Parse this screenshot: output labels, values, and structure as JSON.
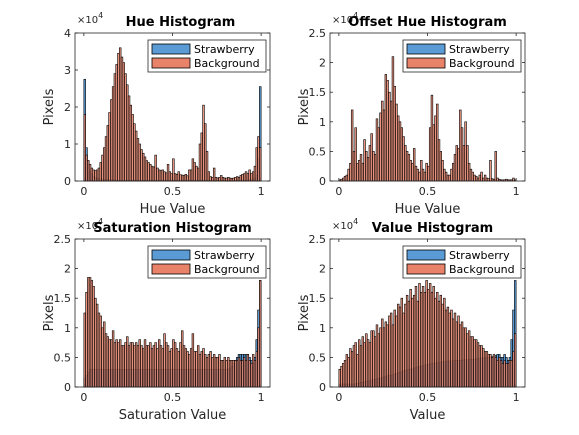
{
  "colors": {
    "strawberry": "#5b9bd5",
    "background": "#e8836a",
    "edge": "#000000",
    "axis": "#262626",
    "text": "#262626"
  },
  "legend": {
    "position": "top-right"
  },
  "chart_data": [
    {
      "type": "bar",
      "title": "Hue Histogram",
      "xlabel": "Hue Value",
      "ylabel": "Pixels",
      "exponent": "4",
      "xlim": [
        -0.05,
        1.05
      ],
      "ylim": [
        0,
        4
      ],
      "xticks": [
        "0",
        "0.5",
        "1"
      ],
      "yticks": [
        "0",
        "1",
        "2",
        "3",
        "4"
      ],
      "bins": 100,
      "series": [
        {
          "name": "Strawberry",
          "values": [
            2.75,
            0.9,
            0.55,
            0.25,
            0.18,
            0.12,
            0.1,
            0.08,
            0.06,
            0.05,
            0.05,
            0.04,
            0.04,
            0.04,
            0.03,
            0.03,
            0.03,
            0.03,
            0.02,
            0.02,
            0.02,
            0.02,
            0.02,
            0.02,
            0.02,
            0.02,
            0.02,
            0.02,
            0.02,
            0.02,
            0.02,
            0.02,
            0.02,
            0.02,
            0.02,
            0.02,
            0.02,
            0.02,
            0.02,
            0.02,
            0.02,
            0.02,
            0.02,
            0.02,
            0.02,
            0.02,
            0.02,
            0.02,
            0.02,
            0.02,
            0.02,
            0.02,
            0.02,
            0.02,
            0.02,
            0.02,
            0.02,
            0.02,
            0.02,
            0.02,
            0.02,
            0.02,
            0.02,
            0.02,
            0.02,
            0.02,
            0.02,
            0.02,
            0.02,
            0.02,
            0.02,
            0.02,
            0.02,
            0.02,
            0.02,
            0.02,
            0.02,
            0.02,
            0.02,
            0.02,
            0.02,
            0.02,
            0.02,
            0.02,
            0.02,
            0.02,
            0.02,
            0.02,
            0.02,
            0.02,
            0.02,
            0.02,
            0.03,
            0.03,
            0.04,
            0.05,
            0.08,
            0.15,
            0.6,
            2.55
          ]
        },
        {
          "name": "Background",
          "values": [
            1.8,
            0.7,
            0.55,
            0.45,
            0.35,
            0.3,
            0.28,
            0.3,
            0.35,
            0.5,
            0.7,
            0.9,
            1.2,
            1.5,
            1.85,
            2.2,
            2.55,
            2.9,
            3.15,
            3.45,
            3.6,
            3.35,
            3.2,
            2.9,
            2.6,
            2.3,
            2.05,
            1.8,
            1.55,
            1.35,
            1.15,
            1.0,
            0.85,
            0.75,
            0.65,
            0.55,
            0.5,
            0.45,
            0.4,
            0.38,
            0.7,
            0.35,
            0.3,
            0.28,
            0.3,
            0.25,
            0.22,
            0.45,
            0.25,
            0.2,
            0.6,
            0.2,
            0.18,
            0.25,
            0.17,
            0.16,
            0.15,
            0.18,
            0.14,
            0.3,
            0.3,
            0.6,
            0.5,
            0.4,
            0.35,
            1.0,
            1.3,
            2.05,
            1.55,
            0.8,
            0.25,
            0.12,
            0.1,
            0.35,
            0.1,
            0.08,
            0.1,
            0.15,
            0.1,
            0.08,
            0.08,
            0.1,
            0.08,
            0.07,
            0.08,
            0.1,
            0.12,
            0.1,
            0.15,
            0.18,
            0.2,
            0.25,
            0.2,
            0.3,
            0.2,
            0.25,
            0.4,
            0.9,
            1.2,
            0.9
          ]
        }
      ]
    },
    {
      "type": "bar",
      "title": "Offset Hue Histogram",
      "xlabel": "Hue Value",
      "ylabel": "Pixels",
      "exponent": "4",
      "xlim": [
        -0.05,
        1.05
      ],
      "ylim": [
        0,
        2.5
      ],
      "xticks": [
        "0",
        "0.5",
        "1"
      ],
      "yticks": [
        "0",
        "0.5",
        "1",
        "1.5",
        "2",
        "2.5"
      ],
      "bins": 100,
      "series": [
        {
          "name": "Strawberry",
          "values": [
            0,
            0,
            0,
            0,
            0,
            0,
            0,
            0,
            0,
            0,
            0,
            0,
            0,
            0,
            0,
            0,
            0,
            0,
            0,
            0,
            0,
            0,
            0,
            0,
            0,
            0,
            0,
            0,
            0,
            0,
            0,
            0,
            0,
            0,
            0,
            0,
            0,
            0,
            0,
            0,
            0,
            0,
            0,
            0,
            0,
            0,
            0,
            0,
            0,
            0,
            0,
            0,
            0,
            0,
            0,
            0,
            0,
            0,
            0,
            0,
            0,
            0,
            0,
            0,
            0,
            0,
            0,
            0,
            0,
            0,
            0,
            0,
            0,
            0,
            0,
            0,
            0,
            0,
            0,
            0,
            0,
            0,
            0,
            0,
            0,
            0,
            0,
            0,
            0,
            0,
            0,
            0,
            0,
            0,
            0,
            0,
            0,
            0,
            0,
            0
          ]
        },
        {
          "name": "Background",
          "values": [
            0.02,
            0.03,
            0.05,
            0.08,
            0.1,
            0.2,
            0.3,
            1.2,
            0.5,
            0.9,
            0.3,
            0.35,
            0.45,
            0.3,
            0.7,
            0.5,
            0.4,
            0.6,
            0.8,
            0.5,
            0.45,
            1.05,
            0.9,
            1.15,
            1.35,
            1.2,
            1.8,
            1.7,
            1.5,
            1.35,
            2.1,
            1.6,
            1.3,
            1.1,
            1.0,
            0.9,
            0.75,
            0.6,
            0.5,
            0.45,
            0.35,
            0.3,
            0.55,
            0.25,
            0.2,
            0.15,
            0.35,
            0.2,
            0.15,
            0.3,
            0.25,
            0.9,
            1.45,
            0.95,
            1.1,
            1.3,
            0.7,
            0.5,
            0.35,
            0.2,
            0.15,
            0.1,
            0.1,
            0.2,
            0.3,
            0.45,
            0.6,
            0.55,
            1.2,
            0.9,
            0.6,
            1.0,
            0.6,
            0.3,
            0.2,
            0.15,
            0.1,
            0.08,
            0.05,
            0.1,
            0.15,
            0.05,
            0.1,
            0.05,
            0.04,
            0.35,
            0.04,
            0.03,
            0.5,
            0.05,
            0.03,
            0.02,
            0.02,
            0.02,
            0.03,
            0.02,
            0.02,
            0.02,
            0.05,
            0.02
          ]
        }
      ]
    },
    {
      "type": "bar",
      "title": "Saturation Histogram",
      "xlabel": "Saturation Value",
      "ylabel": "Pixels",
      "exponent": "4",
      "xlim": [
        -0.05,
        1.05
      ],
      "ylim": [
        0,
        2.5
      ],
      "xticks": [
        "0",
        "0.5",
        "1"
      ],
      "yticks": [
        "0",
        "0.5",
        "1",
        "1.5",
        "2",
        "2.5"
      ],
      "bins": 100,
      "series": [
        {
          "name": "Strawberry",
          "values": [
            0.15,
            0.2,
            0.25,
            0.3,
            0.3,
            0.3,
            0.3,
            0.3,
            0.3,
            0.3,
            0.3,
            0.3,
            0.3,
            0.3,
            0.3,
            0.3,
            0.3,
            0.3,
            0.3,
            0.3,
            0.3,
            0.3,
            0.3,
            0.3,
            0.3,
            0.3,
            0.3,
            0.3,
            0.3,
            0.3,
            0.3,
            0.3,
            0.3,
            0.3,
            0.3,
            0.3,
            0.3,
            0.3,
            0.3,
            0.3,
            0.3,
            0.3,
            0.3,
            0.3,
            0.3,
            0.3,
            0.3,
            0.3,
            0.3,
            0.3,
            0.3,
            0.3,
            0.3,
            0.3,
            0.3,
            0.3,
            0.3,
            0.3,
            0.3,
            0.3,
            0.3,
            0.3,
            0.3,
            0.3,
            0.3,
            0.3,
            0.3,
            0.3,
            0.3,
            0.3,
            0.3,
            0.3,
            0.3,
            0.3,
            0.3,
            0.3,
            0.3,
            0.3,
            0.3,
            0.3,
            0.3,
            0.3,
            0.32,
            0.35,
            0.4,
            0.45,
            0.5,
            0.55,
            0.55,
            0.55,
            0.55,
            0.55,
            0.55,
            0.5,
            0.45,
            0.4,
            0.5,
            0.8,
            1.3,
            1.8
          ]
        },
        {
          "name": "Background",
          "values": [
            1.25,
            1.6,
            1.85,
            1.85,
            1.8,
            1.7,
            1.5,
            1.4,
            1.25,
            1.2,
            1.0,
            1.1,
            0.9,
            0.85,
            0.8,
            0.8,
            0.95,
            0.75,
            0.8,
            0.75,
            0.8,
            0.7,
            0.7,
            0.75,
            0.85,
            0.7,
            0.75,
            0.75,
            0.7,
            0.75,
            0.7,
            0.8,
            0.7,
            0.65,
            0.8,
            0.7,
            0.7,
            0.75,
            0.65,
            0.7,
            0.75,
            0.65,
            0.8,
            0.7,
            0.65,
            0.9,
            0.75,
            0.7,
            0.6,
            0.65,
            0.8,
            0.75,
            0.65,
            0.6,
            0.75,
            0.95,
            0.7,
            0.65,
            0.6,
            0.55,
            0.65,
            0.9,
            0.6,
            0.6,
            0.7,
            0.55,
            0.6,
            0.65,
            0.55,
            0.5,
            0.55,
            0.6,
            0.5,
            0.55,
            0.5,
            0.5,
            0.55,
            0.45,
            0.45,
            0.5,
            0.45,
            0.5,
            0.45,
            0.45,
            0.45,
            0.45,
            0.45,
            0.5,
            0.45,
            0.45,
            0.5,
            0.45,
            0.55,
            0.45,
            0.4,
            0.55,
            0.45,
            0.6,
            1.0,
            1.8
          ]
        }
      ]
    },
    {
      "type": "bar",
      "title": "Value Histogram",
      "xlabel": "Value",
      "ylabel": "Pixels",
      "exponent": "4",
      "xlim": [
        -0.05,
        1.05
      ],
      "ylim": [
        0,
        2.5
      ],
      "xticks": [
        "0",
        "0.5",
        "1"
      ],
      "yticks": [
        "0",
        "0.5",
        "1",
        "1.5",
        "2",
        "2.5"
      ],
      "bins": 100,
      "series": [
        {
          "name": "Strawberry",
          "values": [
            0.05,
            0.05,
            0.05,
            0.05,
            0.05,
            0.05,
            0.05,
            0.05,
            0.05,
            0.06,
            0.06,
            0.07,
            0.08,
            0.08,
            0.09,
            0.1,
            0.1,
            0.11,
            0.12,
            0.12,
            0.13,
            0.14,
            0.15,
            0.15,
            0.16,
            0.17,
            0.18,
            0.19,
            0.2,
            0.2,
            0.21,
            0.22,
            0.23,
            0.24,
            0.25,
            0.26,
            0.27,
            0.28,
            0.29,
            0.3,
            0.3,
            0.31,
            0.32,
            0.33,
            0.34,
            0.35,
            0.35,
            0.36,
            0.37,
            0.38,
            0.38,
            0.39,
            0.4,
            0.4,
            0.41,
            0.41,
            0.42,
            0.42,
            0.43,
            0.43,
            0.43,
            0.44,
            0.44,
            0.44,
            0.44,
            0.45,
            0.45,
            0.45,
            0.45,
            0.45,
            0.46,
            0.46,
            0.46,
            0.46,
            0.47,
            0.47,
            0.47,
            0.48,
            0.48,
            0.48,
            0.49,
            0.49,
            0.5,
            0.5,
            0.5,
            0.5,
            0.51,
            0.52,
            0.53,
            0.55,
            0.55,
            0.5,
            0.5,
            0.55,
            0.5,
            0.45,
            0.5,
            0.8,
            1.3,
            1.8
          ]
        },
        {
          "name": "Background",
          "values": [
            0.3,
            0.35,
            0.4,
            0.45,
            0.55,
            0.5,
            0.65,
            0.6,
            0.7,
            0.75,
            0.55,
            0.8,
            0.7,
            0.85,
            0.75,
            0.9,
            0.8,
            0.75,
            0.95,
            0.95,
            0.85,
            1.05,
            0.9,
            1.0,
            1.15,
            1.0,
            1.1,
            1.05,
            1.2,
            1.25,
            1.05,
            1.3,
            1.2,
            1.4,
            1.35,
            1.5,
            1.25,
            1.4,
            1.55,
            1.45,
            1.65,
            1.5,
            1.55,
            1.7,
            1.45,
            1.75,
            1.6,
            1.7,
            1.6,
            1.8,
            1.65,
            1.75,
            1.6,
            1.7,
            1.5,
            1.6,
            1.45,
            1.55,
            1.4,
            1.5,
            1.3,
            1.35,
            1.25,
            1.3,
            1.15,
            1.25,
            1.1,
            1.2,
            1.05,
            1.1,
            1.0,
            1.0,
            0.9,
            0.95,
            0.85,
            0.85,
            0.8,
            0.8,
            0.75,
            0.7,
            0.7,
            0.65,
            0.6,
            0.6,
            0.55,
            0.55,
            0.5,
            0.55,
            0.5,
            0.45,
            0.5,
            0.45,
            0.4,
            0.45,
            0.4,
            0.4,
            0.45,
            0.45,
            0.6,
            0.9
          ]
        }
      ]
    }
  ]
}
